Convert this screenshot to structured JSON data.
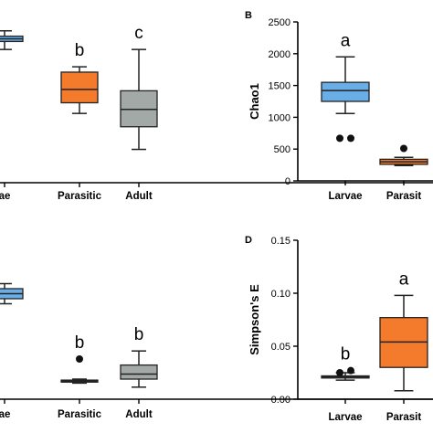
{
  "colors": {
    "Larvae": "#6aaee8",
    "Parasitic": "#f47a2c",
    "Adult": "#a3a9a7",
    "axis": "#000000"
  },
  "chart_data": [
    {
      "panel": "A",
      "type": "box",
      "panel_letter": "",
      "ylabel": "",
      "categories": [
        "Larvae",
        "Parasitic",
        "Adult"
      ],
      "category_labels": [
        "ae",
        "Parasitic",
        "Adult"
      ],
      "ylim": [
        0,
        1.2
      ],
      "yticks": [],
      "boxes": [
        {
          "category": "Larvae",
          "min": 1.0,
          "q1": 1.06,
          "median": 1.08,
          "q3": 1.1,
          "max": 1.14,
          "outliers": []
        },
        {
          "category": "Parasitic",
          "min": 0.52,
          "q1": 0.6,
          "median": 0.7,
          "q3": 0.83,
          "max": 0.87,
          "outliers": []
        },
        {
          "category": "Adult",
          "min": 0.25,
          "q1": 0.42,
          "median": 0.55,
          "q3": 0.69,
          "max": 1.0,
          "outliers": []
        }
      ],
      "letters": [
        "",
        "b",
        "c"
      ]
    },
    {
      "panel": "B",
      "type": "box",
      "panel_letter": "B",
      "ylabel": "Chao1",
      "categories": [
        "Larvae",
        "Parasitic"
      ],
      "category_labels": [
        "Larvae",
        "Parasit"
      ],
      "ylim": [
        0,
        2500
      ],
      "yticks": [
        0,
        500,
        1000,
        1500,
        2000,
        2500
      ],
      "boxes": [
        {
          "category": "Larvae",
          "min": 1060,
          "q1": 1250,
          "median": 1420,
          "q3": 1550,
          "max": 1950,
          "outliers": [
            670,
            670
          ]
        },
        {
          "category": "Parasitic",
          "min": 240,
          "q1": 260,
          "median": 300,
          "q3": 340,
          "max": 370,
          "outliers": [
            510
          ]
        }
      ],
      "letters": [
        "a",
        ""
      ]
    },
    {
      "panel": "C",
      "type": "box",
      "panel_letter": "",
      "ylabel": "",
      "categories": [
        "Larvae",
        "Parasitic",
        "Adult"
      ],
      "category_labels": [
        "ae",
        "Parasitic",
        "Adult"
      ],
      "ylim": [
        0,
        1.2
      ],
      "yticks": [],
      "boxes": [
        {
          "category": "Larvae",
          "min": 0.95,
          "q1": 1.0,
          "median": 1.05,
          "q3": 1.1,
          "max": 1.15,
          "outliers": []
        },
        {
          "category": "Parasitic",
          "min": 0.16,
          "q1": 0.17,
          "median": 0.18,
          "q3": 0.19,
          "max": 0.2,
          "outliers": [
            0.4
          ]
        },
        {
          "category": "Adult",
          "min": 0.12,
          "q1": 0.2,
          "median": 0.25,
          "q3": 0.34,
          "max": 0.48,
          "outliers": []
        }
      ],
      "letters": [
        "",
        "b",
        "b"
      ]
    },
    {
      "panel": "D",
      "type": "box",
      "panel_letter": "D",
      "ylabel": "Simpson's E",
      "categories": [
        "Larvae",
        "Parasitic"
      ],
      "category_labels": [
        "Larvae",
        "Parasit"
      ],
      "ylim": [
        0,
        0.15
      ],
      "yticks": [
        "0.00",
        "0.05",
        "0.10",
        "0.15"
      ],
      "boxes": [
        {
          "category": "Larvae",
          "min": 0.018,
          "q1": 0.02,
          "median": 0.021,
          "q3": 0.022,
          "max": 0.025,
          "outliers": [
            0.025,
            0.027
          ]
        },
        {
          "category": "Parasitic",
          "min": 0.008,
          "q1": 0.03,
          "median": 0.054,
          "q3": 0.077,
          "max": 0.098,
          "outliers": []
        }
      ],
      "letters": [
        "b",
        "a"
      ]
    }
  ]
}
